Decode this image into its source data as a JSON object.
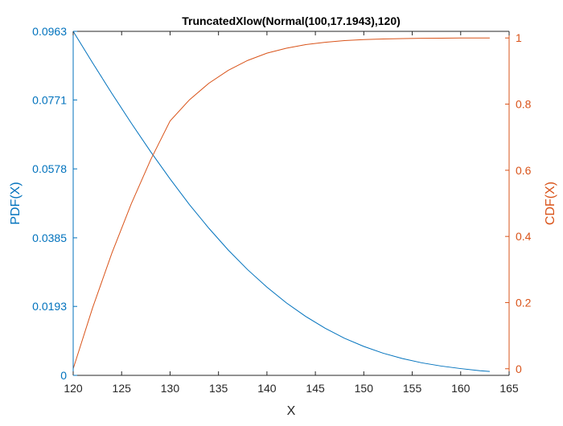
{
  "chart_data": {
    "type": "line",
    "title": "TruncatedXlow(Normal(100,17.1943),120)",
    "xlabel": "X",
    "ylabel_left": "PDF(X)",
    "ylabel_right": "CDF(X)",
    "xlim": [
      120,
      165
    ],
    "ylim_left": [
      0,
      0.0963
    ],
    "ylim_right": [
      -0.02,
      1.02
    ],
    "x_ticks": [
      120,
      125,
      130,
      135,
      140,
      145,
      150,
      155,
      160,
      165
    ],
    "x_tick_labels": [
      "120",
      "125",
      "130",
      "135",
      "140",
      "145",
      "150",
      "155",
      "160",
      "165"
    ],
    "y_left_ticks": [
      0,
      0.0193,
      0.0385,
      0.0578,
      0.0771,
      0.0963
    ],
    "y_left_tick_labels": [
      "0",
      "0.0193",
      "0.0385",
      "0.0578",
      "0.0771",
      "0.0963"
    ],
    "y_right_ticks": [
      0,
      0.2,
      0.4,
      0.6,
      0.8,
      1
    ],
    "y_right_tick_labels": [
      "0",
      "0.2",
      "0.4",
      "0.6",
      "0.8",
      "1"
    ],
    "grid": false,
    "series": [
      {
        "axis": "left",
        "color": "#0072BD",
        "x": [
          120,
          122,
          124,
          126,
          128,
          130,
          132,
          134,
          136,
          138,
          140,
          142,
          144,
          146,
          148,
          150,
          152,
          154,
          156,
          158,
          160,
          162,
          163
        ],
        "values": [
          0.0963,
          0.0875,
          0.0789,
          0.0706,
          0.0626,
          0.055,
          0.0478,
          0.0412,
          0.0351,
          0.0296,
          0.0247,
          0.0203,
          0.0165,
          0.0132,
          0.0104,
          0.0081,
          0.0062,
          0.0047,
          0.0035,
          0.0026,
          0.0019,
          0.0013,
          0.0011
        ]
      },
      {
        "axis": "right",
        "color": "#D95319",
        "x": [
          120,
          122,
          124,
          126,
          128,
          130,
          132,
          134,
          136,
          138,
          140,
          142,
          144,
          146,
          148,
          150,
          152,
          154,
          156,
          158,
          160,
          162,
          163
        ],
        "values": [
          0,
          0.184,
          0.35,
          0.499,
          0.632,
          0.749,
          0.813,
          0.863,
          0.902,
          0.932,
          0.954,
          0.969,
          0.98,
          0.987,
          0.992,
          0.995,
          0.997,
          0.998,
          0.999,
          0.9995,
          0.9998,
          0.9999,
          1.0
        ]
      }
    ]
  }
}
